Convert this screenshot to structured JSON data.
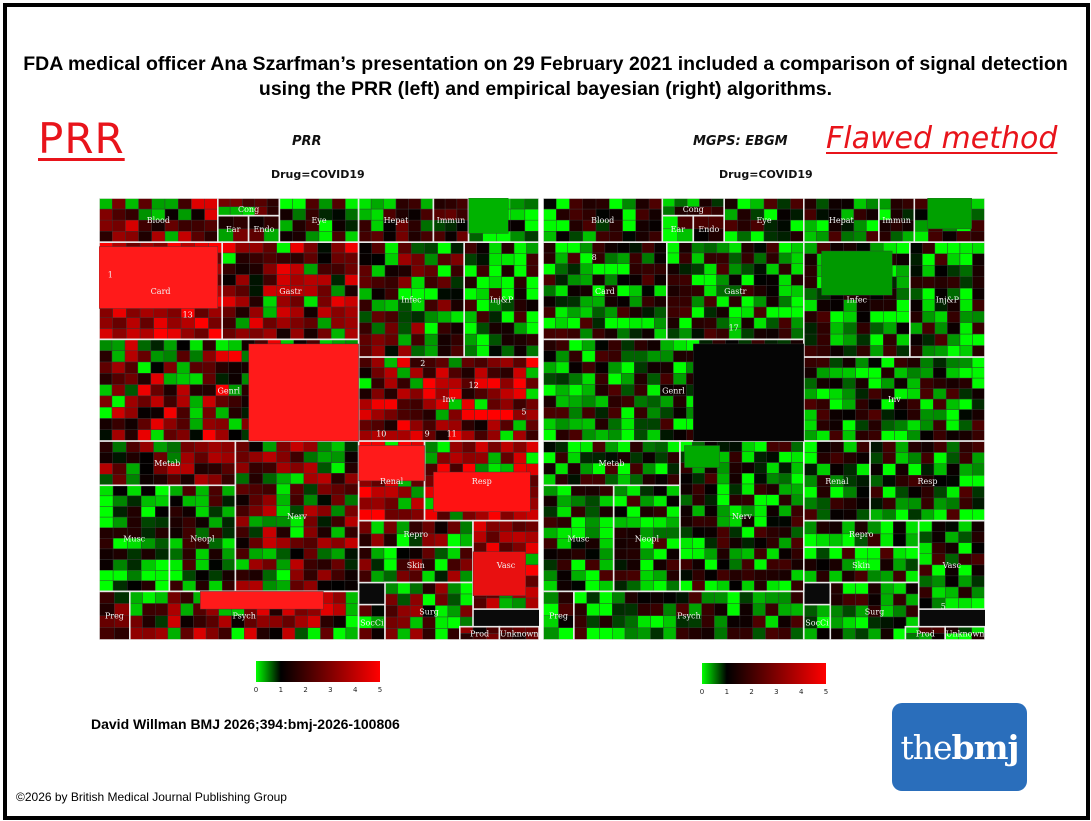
{
  "title": "FDA medical officer Ana Szarfman’s presentation on 29 February 2021 included a comparison of signal detection using the PRR (left) and empirical bayesian (right) algorithms.",
  "annotation_left": "PRR",
  "annotation_right": "Flawed method",
  "citation": "David Willman BMJ 2026;394:bmj-2026-100806",
  "copyright": "©2026 by British Medical Journal Publishing Group",
  "logo": {
    "prefix": "the",
    "bold": "bmj"
  },
  "chart_data": [
    {
      "type": "heatmap",
      "title": "PRR",
      "subtitle": "Drug=COVID19",
      "colorbar": {
        "ticks": [
          "0",
          "1",
          "2",
          "3",
          "4",
          "5"
        ],
        "colors": [
          "#00ff00",
          "#000000",
          "#ff0000"
        ]
      },
      "labels": [
        "Blood",
        "Cong",
        "Ear",
        "Endo",
        "Eye",
        "Hepat",
        "Immun",
        "Card",
        "Gastr",
        "Infec",
        "Inj&P",
        "Genrl",
        "Inv",
        "Metab",
        "Renal",
        "Resp",
        "Nerv",
        "Musc",
        "Neopl",
        "Repro",
        "Skin",
        "Vasc",
        "Preg",
        "Psych",
        "SocCi",
        "Surg",
        "Prod",
        "Unknown"
      ],
      "numbers": [
        "1",
        "13",
        "2",
        "12",
        "5",
        "10",
        "9",
        "11"
      ]
    },
    {
      "type": "heatmap",
      "title": "MGPS: EBGM",
      "subtitle": "Drug=COVID19",
      "colorbar": {
        "ticks": [
          "0",
          "1",
          "2",
          "3",
          "4",
          "5"
        ],
        "colors": [
          "#00ff00",
          "#000000",
          "#ff0000"
        ]
      },
      "labels": [
        "Blood",
        "Cong",
        "Ear",
        "Endo",
        "Eye",
        "Hepat",
        "Immun",
        "Card",
        "Gastr",
        "Infec",
        "Inj&P",
        "Genrl",
        "Inv",
        "Metab",
        "Renal",
        "Resp",
        "Nerv",
        "Musc",
        "Neopl",
        "Repro",
        "Skin",
        "Vasc",
        "Preg",
        "Psych",
        "SocCi",
        "Surg",
        "Prod",
        "Unknown"
      ],
      "numbers": [
        "8",
        "17",
        "5"
      ]
    }
  ]
}
